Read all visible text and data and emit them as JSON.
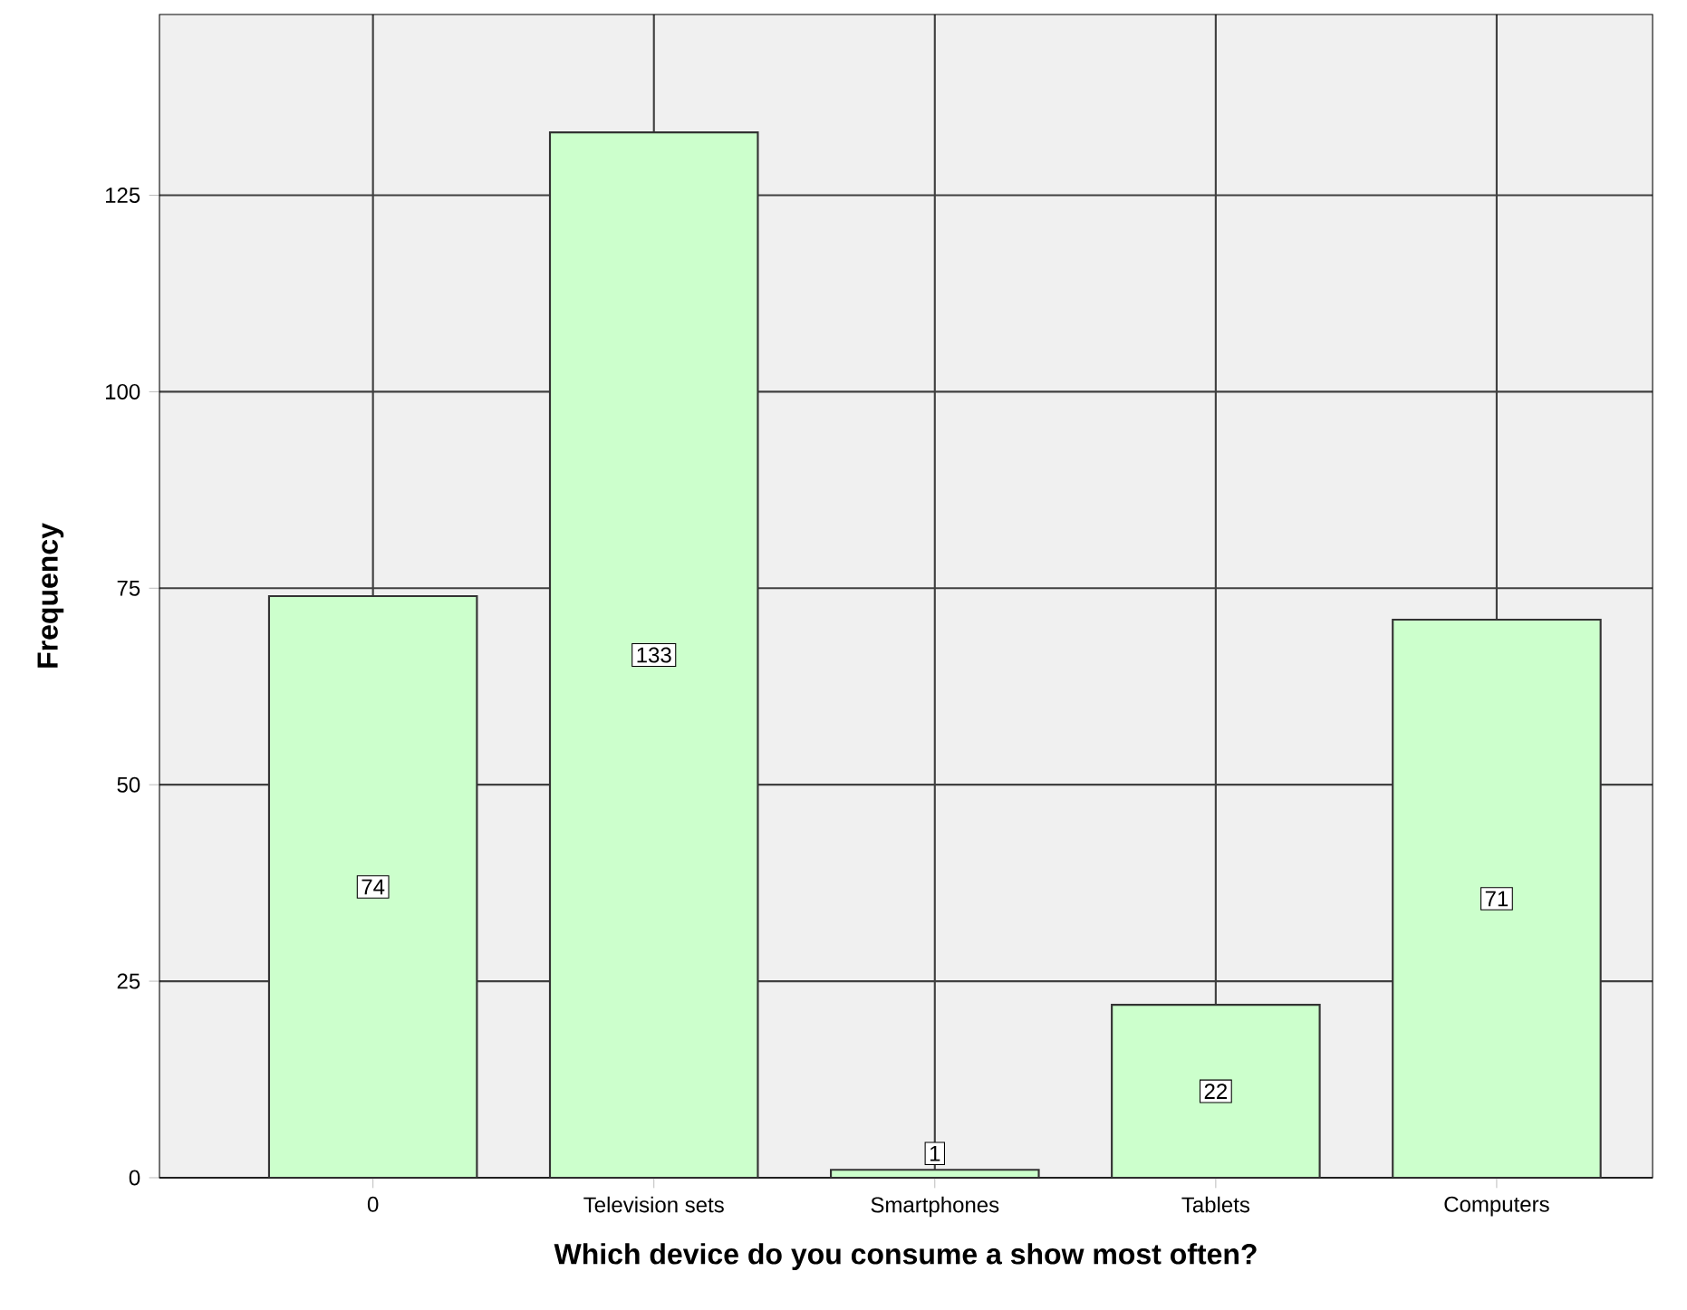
{
  "chart_data": {
    "type": "bar",
    "categories": [
      "0",
      "Television sets",
      "Smartphones",
      "Tablets",
      "Computers"
    ],
    "values": [
      74,
      133,
      1,
      22,
      71
    ],
    "color": "#ccffcc",
    "xlabel": "Which device do you consume a show most often?",
    "ylabel": "Frequency",
    "ylim": [
      0,
      148
    ],
    "yticks": [
      0,
      25,
      50,
      75,
      100,
      125
    ],
    "grid": true,
    "data_labels": true
  }
}
